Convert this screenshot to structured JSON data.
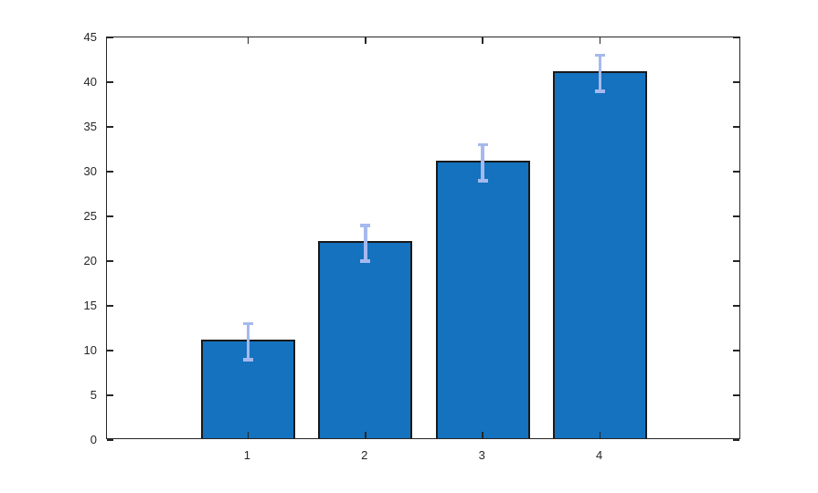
{
  "chart_data": {
    "type": "bar",
    "categories": [
      "1",
      "2",
      "3",
      "4"
    ],
    "values": [
      11,
      22,
      31,
      41
    ],
    "error_bars": [
      2,
      2,
      2,
      2
    ],
    "title": "",
    "xlabel": "",
    "ylabel": "",
    "ylim": [
      0,
      45
    ],
    "yticks": [
      0,
      5,
      10,
      15,
      20,
      25,
      30,
      35,
      40,
      45
    ],
    "grid": false,
    "legend": null,
    "box": true,
    "tick_direction": "in",
    "colors": {
      "bar_fill": "#1472BE",
      "bar_edge": "#1A1A1A",
      "error_bar": "#A6B9EE",
      "axis": "#262626",
      "tick_label": "#262626",
      "background": "#FFFFFF"
    }
  }
}
